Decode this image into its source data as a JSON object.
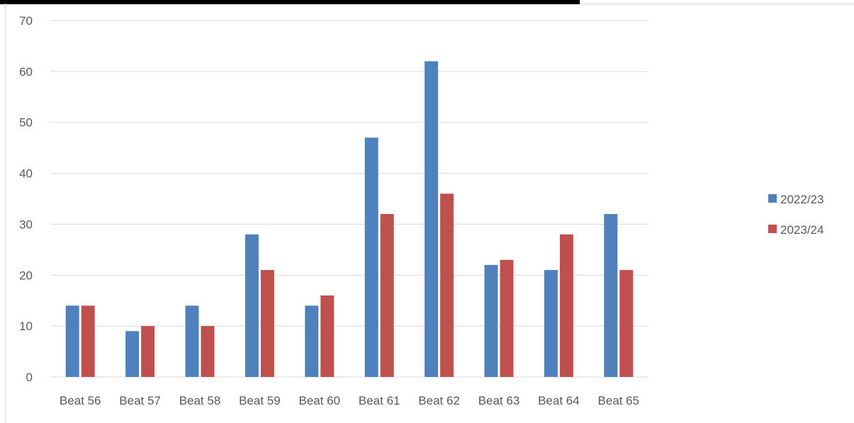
{
  "chart_data": {
    "type": "bar",
    "title": "",
    "xlabel": "",
    "ylabel": "",
    "categories": [
      "Beat 56",
      "Beat 57",
      "Beat 58",
      "Beat 59",
      "Beat 60",
      "Beat 61",
      "Beat 62",
      "Beat 63",
      "Beat 64",
      "Beat 65"
    ],
    "series": [
      {
        "name": "2022/23",
        "color": "#4f81bd",
        "values": [
          14,
          9,
          14,
          28,
          14,
          47,
          62,
          22,
          21,
          32
        ]
      },
      {
        "name": "2023/24",
        "color": "#c0504d",
        "values": [
          14,
          10,
          10,
          21,
          16,
          32,
          36,
          23,
          28,
          21
        ]
      }
    ],
    "ylim": [
      0,
      70
    ],
    "yticks": [
      0,
      10,
      20,
      30,
      40,
      50,
      60,
      70
    ],
    "grid": true,
    "legend_position": "right"
  }
}
